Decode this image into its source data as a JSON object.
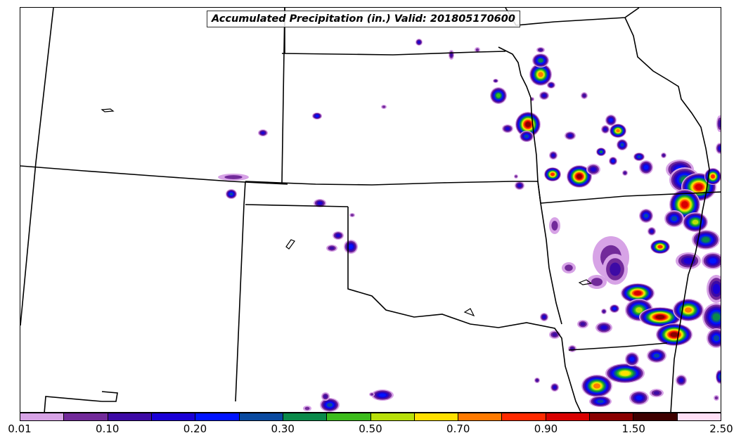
{
  "title": "Accumulated Precipitation (in.) Valid: 201805170600",
  "colorbar": {
    "colors": [
      "#d7a3e6",
      "#722a9a",
      "#3d0aa5",
      "#1a00d6",
      "#0014ff",
      "#0a4aa0",
      "#0a8a4a",
      "#3cbc1c",
      "#b8e00a",
      "#ffe000",
      "#ff7a00",
      "#ff2a00",
      "#d80000",
      "#8a0000",
      "#3e0000",
      "#ffe0f6"
    ],
    "tick_labels": [
      "0.01",
      "0.10",
      "0.20",
      "0.30",
      "0.50",
      "0.70",
      "0.90",
      "1.50",
      "2.50"
    ]
  }
}
